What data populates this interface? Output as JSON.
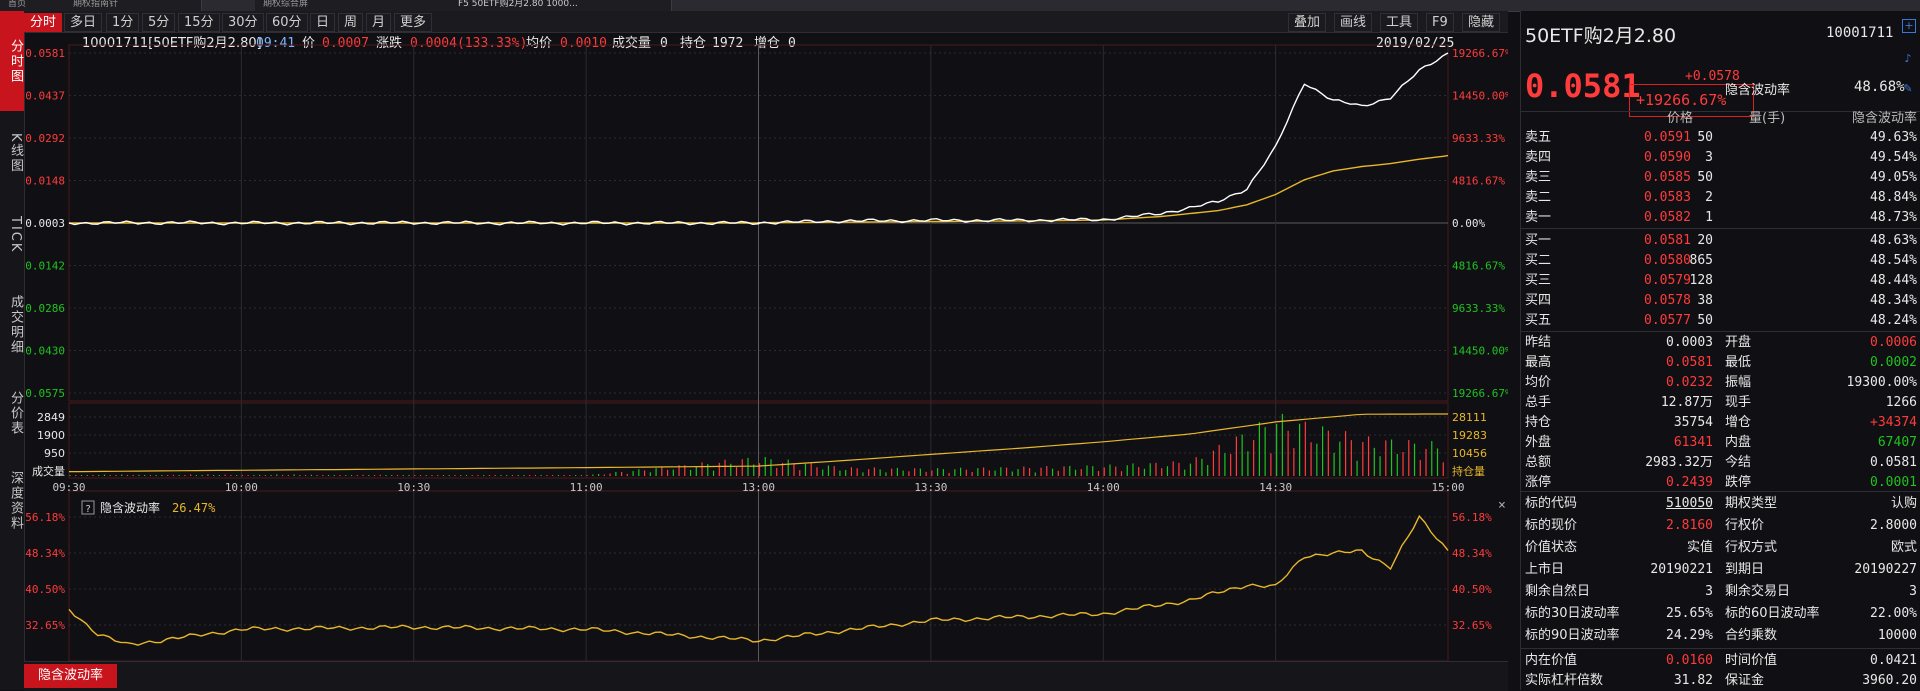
{
  "top_tabs": [
    "首页",
    "期权指南针",
    "期权综合屏",
    "F5 50ETF购2月2.80 1000..."
  ],
  "left_tabs": [
    "分时图",
    "K线图",
    "TICK",
    "成交明细",
    "分价表",
    "深度资料"
  ],
  "toolbar": {
    "left": [
      "分时",
      "多日",
      "1分",
      "5分",
      "15分",
      "30分",
      "60分",
      "日",
      "周",
      "月",
      "更多"
    ],
    "right": [
      "叠加",
      "画线",
      "工具",
      "F9",
      "隐藏"
    ]
  },
  "info": {
    "code_name": "10001711[50ETF购2月2.80]",
    "time": "09:41",
    "price_label": "价",
    "price": "0.0007",
    "change_label": "涨跌",
    "change": "0.0004(133.33%)",
    "avg_label": "均价",
    "avg": "0.0010",
    "vol_label": "成交量",
    "vol": "0",
    "oi_label": "持仓",
    "oi": "1972",
    "oi_chg_label": "增仓",
    "oi_chg": "0",
    "date": "2019/02/25"
  },
  "price_axis_left": [
    {
      "v": "0.0581",
      "c": "#ff3b3b"
    },
    {
      "v": "0.0437",
      "c": "#ff3b3b"
    },
    {
      "v": "0.0292",
      "c": "#ff3b3b"
    },
    {
      "v": "0.0148",
      "c": "#ff3b3b"
    },
    {
      "v": "0.0003",
      "c": "#e8e8e8"
    },
    {
      "v": "-0.0142",
      "c": "#1fc21f"
    },
    {
      "v": "-0.0286",
      "c": "#1fc21f"
    },
    {
      "v": "-0.0430",
      "c": "#1fc21f"
    },
    {
      "v": "-0.0575",
      "c": "#1fc21f"
    }
  ],
  "price_axis_right": [
    {
      "v": "19266.67%",
      "c": "#ff3b3b"
    },
    {
      "v": "14450.00%",
      "c": "#ff3b3b"
    },
    {
      "v": "9633.33%",
      "c": "#ff3b3b"
    },
    {
      "v": "4816.67%",
      "c": "#ff3b3b"
    },
    {
      "v": "0.00%",
      "c": "#e8e8e8"
    },
    {
      "v": "4816.67%",
      "c": "#1fc21f"
    },
    {
      "v": "9633.33%",
      "c": "#1fc21f"
    },
    {
      "v": "14450.00%",
      "c": "#1fc21f"
    },
    {
      "v": "19266.67%",
      "c": "#1fc21f"
    }
  ],
  "vol_axis_left": [
    "2849",
    "1900",
    "950",
    "成交量"
  ],
  "vol_axis_right": [
    "28111",
    "19283",
    "10456",
    "持仓量"
  ],
  "time_axis": [
    "09:30",
    "10:00",
    "10:30",
    "11:00",
    "13:00",
    "13:30",
    "14:00",
    "14:30",
    "15:00"
  ],
  "iv_panel": {
    "help": "?",
    "title": "隐含波动率",
    "value": "26.47%",
    "axis": [
      "56.18%",
      "48.34%",
      "40.50%",
      "32.65%"
    ]
  },
  "bottom_tab": "隐含波动率",
  "right_panel": {
    "title": "50ETF购2月2.80",
    "code": "10001711",
    "price": "0.0581",
    "change": "+0.0578",
    "change_pct": "+19266.67%",
    "iv_label": "隐含波动率",
    "iv": "48.68%",
    "book_header": [
      "价格",
      "量(手)",
      "隐含波动率"
    ],
    "asks": [
      {
        "label": "卖五",
        "price": "0.0591",
        "qty": "50",
        "iv": "49.63%"
      },
      {
        "label": "卖四",
        "price": "0.0590",
        "qty": "3",
        "iv": "49.54%"
      },
      {
        "label": "卖三",
        "price": "0.0585",
        "qty": "50",
        "iv": "49.05%"
      },
      {
        "label": "卖二",
        "price": "0.0583",
        "qty": "2",
        "iv": "48.84%"
      },
      {
        "label": "卖一",
        "price": "0.0582",
        "qty": "1",
        "iv": "48.73%"
      }
    ],
    "bids": [
      {
        "label": "买一",
        "price": "0.0581",
        "qty": "20",
        "iv": "48.63%"
      },
      {
        "label": "买二",
        "price": "0.0580",
        "qty": "865",
        "iv": "48.54%"
      },
      {
        "label": "买三",
        "price": "0.0579",
        "qty": "128",
        "iv": "48.44%"
      },
      {
        "label": "买四",
        "price": "0.0578",
        "qty": "38",
        "iv": "48.34%"
      },
      {
        "label": "买五",
        "price": "0.0577",
        "qty": "50",
        "iv": "48.24%"
      }
    ],
    "stats": [
      {
        "l1": "昨结",
        "v1": "0.0003",
        "c1": "#e8e8e8",
        "l2": "开盘",
        "v2": "0.0006",
        "c2": "#ff3b3b"
      },
      {
        "l1": "最高",
        "v1": "0.0581",
        "c1": "#ff3b3b",
        "l2": "最低",
        "v2": "0.0002",
        "c2": "#1fc21f"
      },
      {
        "l1": "均价",
        "v1": "0.0232",
        "c1": "#ff3b3b",
        "l2": "振幅",
        "v2": "19300.00%",
        "c2": "#e8e8e8"
      },
      {
        "l1": "总手",
        "v1": "12.87万",
        "c1": "#e8e8e8",
        "l2": "现手",
        "v2": "1266",
        "c2": "#e8e8e8"
      },
      {
        "l1": "持仓",
        "v1": "35754",
        "c1": "#e8e8e8",
        "l2": "增仓",
        "v2": "+34374",
        "c2": "#ff3b3b"
      },
      {
        "l1": "外盘",
        "v1": "61341",
        "c1": "#ff3b3b",
        "l2": "内盘",
        "v2": "67407",
        "c2": "#1fc21f"
      },
      {
        "l1": "总额",
        "v1": "2983.32万",
        "c1": "#e8e8e8",
        "l2": "今结",
        "v2": "0.0581",
        "c2": "#e8e8e8"
      },
      {
        "l1": "涨停",
        "v1": "0.2439",
        "c1": "#ff3b3b",
        "l2": "跌停",
        "v2": "0.0001",
        "c2": "#1fc21f"
      }
    ],
    "contract": [
      {
        "l1": "标的代码",
        "v1": "510050",
        "c1": "#e8e8e8",
        "u1": true,
        "l2": "期权类型",
        "v2": "认购",
        "c2": "#e8e8e8"
      },
      {
        "l1": "标的现价",
        "v1": "2.8160",
        "c1": "#ff3b3b",
        "l2": "行权价",
        "v2": "2.8000",
        "c2": "#e8e8e8"
      },
      {
        "l1": "价值状态",
        "v1": "实值",
        "c1": "#e8e8e8",
        "l2": "行权方式",
        "v2": "欧式",
        "c2": "#e8e8e8"
      },
      {
        "l1": "上市日",
        "v1": "20190221",
        "c1": "#e8e8e8",
        "l2": "到期日",
        "v2": "20190227",
        "c2": "#e8e8e8"
      },
      {
        "l1": "剩余自然日",
        "v1": "3",
        "c1": "#e8e8e8",
        "l2": "剩余交易日",
        "v2": "3",
        "c2": "#e8e8e8"
      },
      {
        "l1": "标的30日波动率",
        "v1": "25.65%",
        "c1": "#e8e8e8",
        "l2": "标的60日波动率",
        "v2": "22.00%",
        "c2": "#e8e8e8"
      },
      {
        "l1": "标的90日波动率",
        "v1": "24.29%",
        "c1": "#e8e8e8",
        "l2": "合约乘数",
        "v2": "10000",
        "c2": "#e8e8e8"
      }
    ],
    "value_rows": [
      {
        "l1": "内在价值",
        "v1": "0.0160",
        "c1": "#ff3b3b",
        "l2": "时间价值",
        "v2": "0.0421",
        "c2": "#e8e8e8"
      },
      {
        "l1": "实际杠杆倍数",
        "v1": "31.82",
        "c1": "#e8e8e8",
        "l2": "保证金",
        "v2": "3960.20",
        "c2": "#e8e8e8"
      }
    ]
  },
  "colors": {
    "up": "#ff3b3b",
    "down": "#1fc21f",
    "accent": "#c8141c",
    "avg_line": "#e8b72a",
    "price_line": "#ffffff"
  },
  "chart_data": [
    {
      "type": "line",
      "title": "",
      "x": [
        "09:30",
        "09:45",
        "10:00",
        "10:15",
        "10:30",
        "10:45",
        "11:00",
        "11:15",
        "11:30",
        "13:00",
        "13:15",
        "13:30",
        "13:45",
        "14:00",
        "14:10",
        "14:20",
        "14:25",
        "14:30",
        "14:35",
        "14:40",
        "14:45",
        "14:50",
        "14:55",
        "15:00"
      ],
      "series": [
        {
          "values": [
            0.0003,
            0.0004,
            0.0003,
            0.0003,
            0.0004,
            0.0003,
            0.0003,
            0.0003,
            0.0003,
            0.0004,
            0.001,
            0.0012,
            0.0012,
            0.0015,
            0.0035,
            0.0075,
            0.012,
            0.026,
            0.048,
            0.042,
            0.04,
            0.043,
            0.052,
            0.0581
          ]
        },
        {
          "values": [
            0.0003,
            0.0003,
            0.0003,
            0.0003,
            0.0003,
            0.0003,
            0.0003,
            0.0003,
            0.0003,
            0.0004,
            0.0006,
            0.0008,
            0.001,
            0.0013,
            0.0025,
            0.0045,
            0.0065,
            0.01,
            0.015,
            0.018,
            0.0195,
            0.0205,
            0.022,
            0.0232
          ]
        }
      ],
      "ylim": [
        -0.0575,
        0.0581
      ]
    },
    {
      "type": "bar",
      "title": "",
      "categories": [
        "09:30",
        "10:00",
        "10:30",
        "11:00",
        "13:00",
        "13:15",
        "13:30",
        "13:45",
        "14:00",
        "14:15",
        "14:30",
        "14:45",
        "15:00"
      ],
      "series": [
        {
          "values": [
            60,
            80,
            50,
            40,
            900,
            400,
            350,
            420,
            500,
            700,
            2849,
            1800,
            1500
          ]
        },
        {
          "values": [
            1972,
            2600,
            3200,
            3800,
            4500,
            7000,
            9800,
            12500,
            15500,
            19000,
            24500,
            28000,
            28111
          ]
        }
      ]
    },
    {
      "type": "line",
      "title": "",
      "x": [
        "09:30",
        "09:35",
        "09:40",
        "10:00",
        "10:30",
        "11:00",
        "13:00",
        "13:30",
        "14:00",
        "14:15",
        "14:25",
        "14:30",
        "14:35",
        "14:45",
        "14:50",
        "14:55",
        "15:00"
      ],
      "series": [
        {
          "values": [
            35.5,
            30.0,
            27.5,
            31.0,
            31.5,
            31.0,
            28.5,
            33.0,
            34.5,
            37.5,
            41.0,
            40.5,
            47.5,
            48.5,
            45.0,
            56.0,
            48.7
          ]
        }
      ],
      "ylim": [
        24.8,
        56.18
      ]
    }
  ]
}
